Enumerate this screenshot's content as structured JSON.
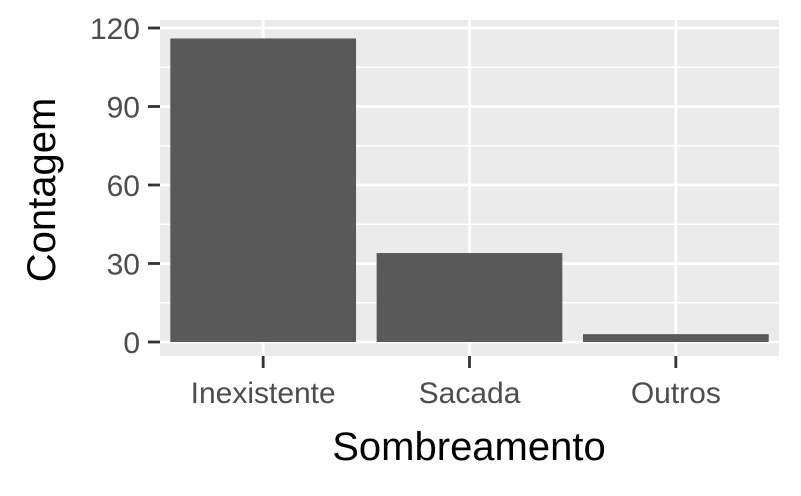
{
  "chart_data": {
    "type": "bar",
    "title": "",
    "xlabel": "Sombreamento",
    "ylabel": "Contagem",
    "categories": [
      "Inexistente",
      "Sacada",
      "Outros"
    ],
    "values": [
      116,
      34,
      3
    ],
    "ylim": [
      0,
      120
    ],
    "yticks": [
      0,
      30,
      60,
      90,
      120
    ],
    "grid": true,
    "legend": "none",
    "colors": {
      "bar": "#595959",
      "panel": "#ebebeb",
      "grid_major": "#ffffff",
      "tick": "#333333",
      "tick_label": "#4d4d4d"
    }
  }
}
